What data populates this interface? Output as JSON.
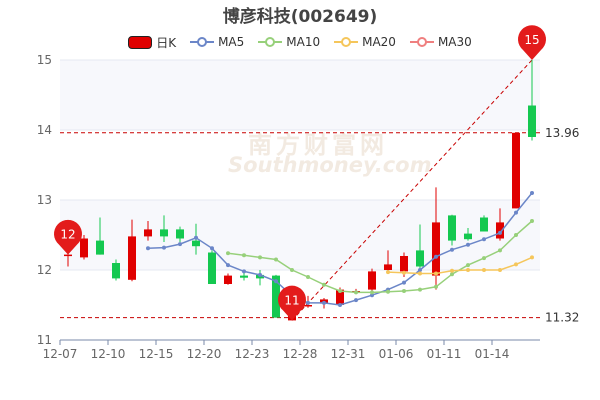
{
  "title": "博彦科技(002649)",
  "legend": [
    {
      "label": "日K",
      "color": "#e00000",
      "kind": "candle"
    },
    {
      "label": "MA5",
      "color": "#6b86c8",
      "kind": "line"
    },
    {
      "label": "MA10",
      "color": "#97d07a",
      "kind": "line"
    },
    {
      "label": "MA20",
      "color": "#f5c65b",
      "kind": "line"
    },
    {
      "label": "MA30",
      "color": "#ef7f7f",
      "kind": "line"
    }
  ],
  "watermark": {
    "cn": "南方财富网",
    "en": "Southmoney.com"
  },
  "colors": {
    "up": "#e00000",
    "down": "#14c850",
    "grid": "#e4e8f2",
    "bg_band": "#f7f8fc",
    "refline": "#c80000"
  },
  "chart_data": {
    "type": "candlestick",
    "ylim": [
      11,
      15
    ],
    "yticks": [
      11,
      12,
      13,
      14,
      15
    ],
    "xtick_labels": [
      "12-07",
      "12-10",
      "12-15",
      "12-20",
      "12-23",
      "12-28",
      "12-31",
      "01-06",
      "01-11",
      "01-14"
    ],
    "xtick_index": [
      0,
      3,
      6,
      9,
      12,
      15,
      18,
      21,
      24,
      27
    ],
    "candles": [
      {
        "o": 12.22,
        "h": 12.3,
        "l": 12.05,
        "c": 12.22
      },
      {
        "o": 12.18,
        "h": 12.5,
        "l": 12.15,
        "c": 12.45
      },
      {
        "o": 12.42,
        "h": 12.75,
        "l": 12.22,
        "c": 12.22
      },
      {
        "o": 12.1,
        "h": 12.15,
        "l": 11.85,
        "c": 11.88
      },
      {
        "o": 11.86,
        "h": 12.72,
        "l": 11.84,
        "c": 12.48
      },
      {
        "o": 12.48,
        "h": 12.7,
        "l": 12.42,
        "c": 12.58
      },
      {
        "o": 12.58,
        "h": 12.78,
        "l": 12.4,
        "c": 12.48
      },
      {
        "o": 12.58,
        "h": 12.62,
        "l": 12.4,
        "c": 12.45
      },
      {
        "o": 12.42,
        "h": 12.66,
        "l": 12.22,
        "c": 12.34
      },
      {
        "o": 12.25,
        "h": 12.28,
        "l": 11.8,
        "c": 11.8
      },
      {
        "o": 11.8,
        "h": 11.95,
        "l": 11.79,
        "c": 11.92
      },
      {
        "o": 11.92,
        "h": 11.96,
        "l": 11.85,
        "c": 11.89
      },
      {
        "o": 11.93,
        "h": 12.0,
        "l": 11.78,
        "c": 11.88
      },
      {
        "o": 11.92,
        "h": 11.93,
        "l": 11.32,
        "c": 11.32
      },
      {
        "o": 11.28,
        "h": 11.7,
        "l": 11.28,
        "c": 11.58
      },
      {
        "o": 11.5,
        "h": 11.63,
        "l": 11.46,
        "c": 11.5
      },
      {
        "o": 11.52,
        "h": 11.6,
        "l": 11.45,
        "c": 11.58
      },
      {
        "o": 11.5,
        "h": 11.75,
        "l": 11.48,
        "c": 11.72
      },
      {
        "o": 11.7,
        "h": 11.73,
        "l": 11.68,
        "c": 11.7
      },
      {
        "o": 11.72,
        "h": 12.02,
        "l": 11.7,
        "c": 11.98
      },
      {
        "o": 12.0,
        "h": 12.28,
        "l": 11.95,
        "c": 12.08
      },
      {
        "o": 11.98,
        "h": 12.25,
        "l": 11.9,
        "c": 12.2
      },
      {
        "o": 12.28,
        "h": 12.65,
        "l": 12.0,
        "c": 12.05
      },
      {
        "o": 11.92,
        "h": 13.18,
        "l": 11.72,
        "c": 12.68
      },
      {
        "o": 12.78,
        "h": 12.79,
        "l": 12.35,
        "c": 12.42
      },
      {
        "o": 12.52,
        "h": 12.6,
        "l": 12.42,
        "c": 12.44
      },
      {
        "o": 12.75,
        "h": 12.78,
        "l": 12.55,
        "c": 12.55
      },
      {
        "o": 12.45,
        "h": 12.88,
        "l": 12.42,
        "c": 12.68
      },
      {
        "o": 12.88,
        "h": 13.96,
        "l": 12.88,
        "c": 13.96
      },
      {
        "o": 14.35,
        "h": 15.0,
        "l": 13.85,
        "c": 13.9
      }
    ],
    "series": [
      {
        "name": "MA5",
        "color": "#6b86c8",
        "values": [
          null,
          null,
          null,
          null,
          null,
          12.31,
          12.32,
          12.37,
          12.46,
          12.31,
          12.07,
          11.98,
          11.93,
          11.84,
          11.63,
          11.53,
          11.53,
          11.5,
          11.57,
          11.64,
          11.72,
          11.82,
          12.0,
          12.19,
          12.29,
          12.36,
          12.44,
          12.53,
          12.82,
          13.1
        ]
      },
      {
        "name": "MA10",
        "color": "#97d07a",
        "values": [
          null,
          null,
          null,
          null,
          null,
          null,
          null,
          null,
          null,
          null,
          12.24,
          12.21,
          12.18,
          12.15,
          12.0,
          11.9,
          11.79,
          11.7,
          11.68,
          11.68,
          11.69,
          11.7,
          11.72,
          11.76,
          11.94,
          12.07,
          12.17,
          12.28,
          12.5,
          12.7
        ]
      },
      {
        "name": "MA20",
        "color": "#f5c65b",
        "values": [
          null,
          null,
          null,
          null,
          null,
          null,
          null,
          null,
          null,
          null,
          null,
          null,
          null,
          null,
          null,
          null,
          null,
          null,
          null,
          null,
          11.97,
          11.96,
          11.95,
          11.95,
          11.99,
          12.0,
          12.0,
          12.0,
          12.08,
          12.18
        ]
      }
    ],
    "ref_lines": [
      {
        "value": 13.96,
        "label": "13.96"
      },
      {
        "value": 11.32,
        "label": "11.32"
      }
    ],
    "markers": [
      {
        "index": 0,
        "value": 12.22,
        "label": "12"
      },
      {
        "index": 14,
        "value": 11.28,
        "label": "11"
      },
      {
        "index": 29,
        "value": 15.0,
        "label": "15"
      }
    ]
  }
}
